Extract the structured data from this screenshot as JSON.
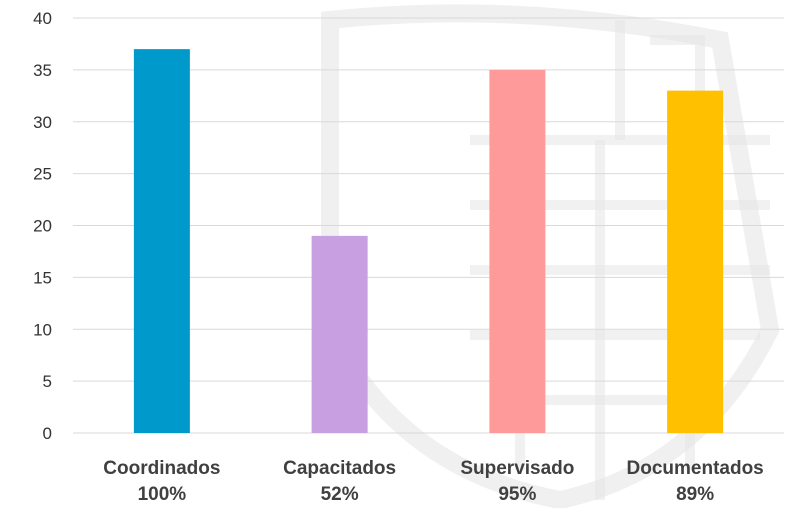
{
  "chart_data": {
    "type": "bar",
    "categories": [
      "Coordinados",
      "Capacitados",
      "Supervisado",
      "Documentados"
    ],
    "category_sublabels": [
      "100%",
      "52%",
      "95%",
      "89%"
    ],
    "values": [
      37,
      19,
      35,
      33
    ],
    "bar_colors": [
      "#0099cc",
      "#c89fe0",
      "#ff9a9a",
      "#ffc000"
    ],
    "ylim": [
      0,
      40
    ],
    "yticks": [
      0,
      5,
      10,
      15,
      20,
      25,
      30,
      35,
      40
    ],
    "grid": true,
    "title": "",
    "xlabel": "",
    "ylabel": ""
  }
}
